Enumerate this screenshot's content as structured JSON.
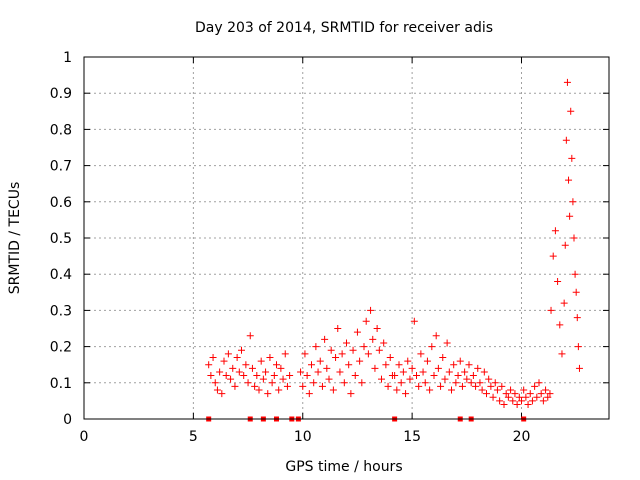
{
  "chart_data": {
    "type": "scatter",
    "title": "Day 203 of 2014, SRMTID for receiver adis",
    "xlabel": "GPS time / hours",
    "ylabel": "SRMTID / TECUs",
    "xlim": [
      0,
      24
    ],
    "ylim": [
      0,
      1
    ],
    "xticks": [
      0,
      5,
      10,
      15,
      20
    ],
    "xtick_labels": [
      "0",
      "5",
      "10",
      "15",
      "20"
    ],
    "yticks": [
      0,
      0.1,
      0.2,
      0.3,
      0.4,
      0.5,
      0.6,
      0.7,
      0.8,
      0.9,
      1
    ],
    "ytick_labels": [
      "0",
      "0.1",
      "0.2",
      "0.3",
      "0.4",
      "0.5",
      "0.6",
      "0.7",
      "0.8",
      "0.9",
      "1"
    ],
    "grid": true,
    "marker": "+",
    "color": "#ff0000",
    "series": [
      {
        "name": "SRMTID",
        "segments": [
          {
            "x": [
              5.7,
              5.8,
              5.9,
              6.0,
              6.1,
              6.2,
              6.3,
              6.4,
              6.5,
              6.6,
              6.7,
              6.8,
              6.9,
              7.0,
              7.1,
              7.2,
              7.3,
              7.4,
              7.5,
              7.6,
              7.7,
              7.8,
              7.9,
              8.0,
              8.1,
              8.2,
              8.3,
              8.4,
              8.5,
              8.6,
              8.7,
              8.8,
              8.9,
              9.0,
              9.1,
              9.2,
              9.3,
              9.4
            ],
            "y": [
              0.15,
              0.12,
              0.17,
              0.1,
              0.08,
              0.13,
              0.07,
              0.16,
              0.12,
              0.18,
              0.11,
              0.14,
              0.09,
              0.17,
              0.13,
              0.19,
              0.12,
              0.15,
              0.1,
              0.23,
              0.14,
              0.09,
              0.12,
              0.08,
              0.16,
              0.11,
              0.13,
              0.07,
              0.17,
              0.1,
              0.12,
              0.15,
              0.08,
              0.14,
              0.11,
              0.18,
              0.09,
              0.12
            ]
          },
          {
            "x": [
              9.9,
              10.0,
              10.1,
              10.2,
              10.3,
              10.4,
              10.5,
              10.6,
              10.7,
              10.8,
              10.9,
              11.0,
              11.1,
              11.2,
              11.3,
              11.4,
              11.5,
              11.6,
              11.7,
              11.8,
              11.9,
              12.0,
              12.1,
              12.2,
              12.3,
              12.4,
              12.5,
              12.6,
              12.7,
              12.8,
              12.9,
              13.0,
              13.1,
              13.2,
              13.3,
              13.4,
              13.5,
              13.6,
              13.7,
              13.8,
              13.9,
              14.0,
              14.1
            ],
            "y": [
              0.13,
              0.09,
              0.18,
              0.12,
              0.07,
              0.15,
              0.1,
              0.2,
              0.13,
              0.16,
              0.09,
              0.22,
              0.14,
              0.11,
              0.19,
              0.08,
              0.17,
              0.25,
              0.13,
              0.18,
              0.1,
              0.21,
              0.15,
              0.07,
              0.19,
              0.12,
              0.24,
              0.16,
              0.1,
              0.2,
              0.27,
              0.18,
              0.3,
              0.22,
              0.14,
              0.25,
              0.19,
              0.11,
              0.21,
              0.15,
              0.09,
              0.17,
              0.12
            ]
          },
          {
            "x": [
              14.2,
              14.3,
              14.4,
              14.5,
              14.6,
              14.7,
              14.8,
              14.9,
              15.0,
              15.1,
              15.2,
              15.3,
              15.4,
              15.5,
              15.6,
              15.7,
              15.8,
              15.9,
              16.0,
              16.1,
              16.2,
              16.3,
              16.4,
              16.5,
              16.6,
              16.7,
              16.8,
              16.9,
              17.0,
              17.1,
              17.2,
              17.3,
              17.4,
              17.5,
              17.6,
              17.7
            ],
            "y": [
              0.12,
              0.08,
              0.15,
              0.1,
              0.13,
              0.07,
              0.16,
              0.11,
              0.14,
              0.27,
              0.12,
              0.09,
              0.18,
              0.13,
              0.1,
              0.16,
              0.08,
              0.2,
              0.12,
              0.23,
              0.14,
              0.09,
              0.17,
              0.11,
              0.21,
              0.13,
              0.08,
              0.15,
              0.1,
              0.12,
              0.16,
              0.09,
              0.13,
              0.11,
              0.15,
              0.1
            ]
          },
          {
            "x": [
              17.8,
              17.9,
              18.0,
              18.1,
              18.2,
              18.3,
              18.4,
              18.5,
              18.6,
              18.7,
              18.8,
              18.9,
              19.0,
              19.1,
              19.2,
              19.3,
              19.4,
              19.5,
              19.6,
              19.7,
              19.8,
              19.9,
              20.0,
              20.1,
              20.2,
              20.3,
              20.4,
              20.5,
              20.6,
              20.7,
              20.8,
              20.9,
              21.0,
              21.1,
              21.2,
              21.3
            ],
            "y": [
              0.12,
              0.09,
              0.14,
              0.1,
              0.08,
              0.13,
              0.07,
              0.11,
              0.09,
              0.06,
              0.1,
              0.08,
              0.05,
              0.09,
              0.04,
              0.07,
              0.06,
              0.08,
              0.05,
              0.07,
              0.04,
              0.06,
              0.05,
              0.08,
              0.06,
              0.04,
              0.07,
              0.05,
              0.09,
              0.06,
              0.1,
              0.07,
              0.05,
              0.08,
              0.06,
              0.07
            ]
          },
          {
            "x": [
              21.35,
              21.45,
              21.55,
              21.65,
              21.75,
              21.85,
              21.95,
              22.0,
              22.05,
              22.1,
              22.15,
              22.2,
              22.25,
              22.3,
              22.35,
              22.4,
              22.45,
              22.5,
              22.55,
              22.6,
              22.65
            ],
            "y": [
              0.3,
              0.45,
              0.52,
              0.38,
              0.26,
              0.18,
              0.32,
              0.48,
              0.77,
              0.93,
              0.66,
              0.56,
              0.85,
              0.72,
              0.6,
              0.5,
              0.4,
              0.35,
              0.28,
              0.2,
              0.14
            ]
          }
        ]
      }
    ],
    "data_gap_markers_x": [
      5.7,
      7.6,
      8.2,
      8.8,
      9.5,
      9.8,
      14.2,
      17.2,
      17.7,
      20.1
    ]
  }
}
